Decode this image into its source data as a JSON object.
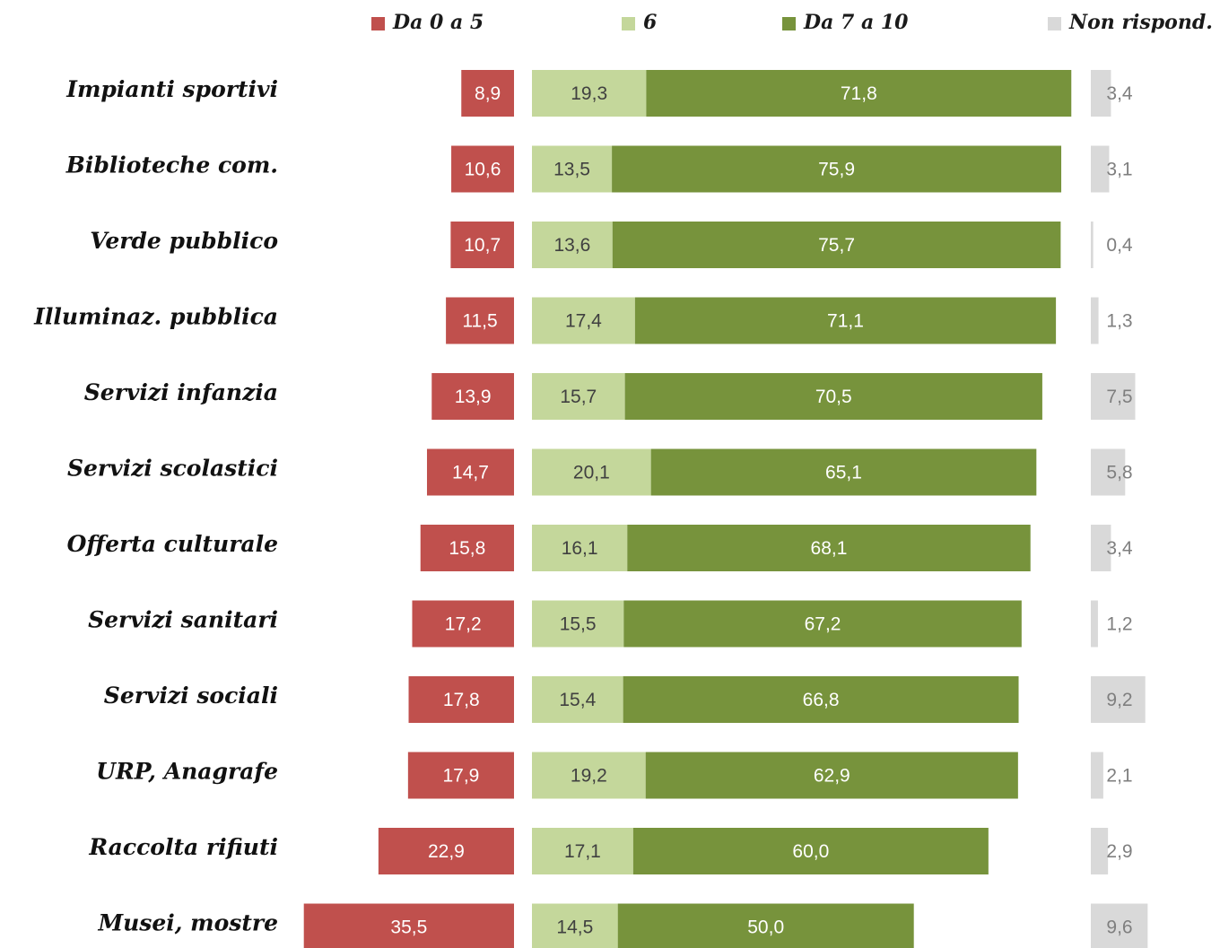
{
  "chart_data": {
    "type": "bar",
    "stacked": true,
    "orientation": "horizontal",
    "legend_position": "top",
    "categories": [
      "Impianti sportivi",
      "Biblioteche com.",
      "Verde pubblico",
      "Illuminaz. pubblica",
      "Servizi infanzia",
      "Servizi scolastici",
      "Offerta culturale",
      "Servizi sanitari",
      "Servizi sociali",
      "URP,  Anagrafe",
      "Raccolta rifiuti",
      "Musei, mostre"
    ],
    "series": [
      {
        "name": "Da 0 a 5",
        "color": "#c0504d",
        "label_color": "#ffffff",
        "values": [
          8.9,
          10.6,
          10.7,
          11.5,
          13.9,
          14.7,
          15.8,
          17.2,
          17.8,
          17.9,
          22.9,
          35.5
        ],
        "labels": [
          "8,9",
          "10,6",
          "10,7",
          "11,5",
          "13,9",
          "14,7",
          "15,8",
          "17,2",
          "17,8",
          "17,9",
          "22,9",
          "35,5"
        ]
      },
      {
        "name": "6",
        "color": "#c4d79b",
        "label_color": "#404040",
        "values": [
          19.3,
          13.5,
          13.6,
          17.4,
          15.7,
          20.1,
          16.1,
          15.5,
          15.4,
          19.2,
          17.1,
          14.5
        ],
        "labels": [
          "19,3",
          "13,5",
          "13,6",
          "17,4",
          "15,7",
          "20,1",
          "16,1",
          "15,5",
          "15,4",
          "19,2",
          "17,1",
          "14,5"
        ]
      },
      {
        "name": "Da 7 a 10",
        "color": "#77933c",
        "label_color": "#ffffff",
        "values": [
          71.8,
          75.9,
          75.7,
          71.1,
          70.5,
          65.1,
          68.1,
          67.2,
          66.8,
          62.9,
          60.0,
          50.0
        ],
        "labels": [
          "71,8",
          "75,9",
          "75,7",
          "71,1",
          "70,5",
          "65,1",
          "68,1",
          "67,2",
          "66,8",
          "62,9",
          "60,0",
          "50,0"
        ]
      },
      {
        "name": "Non rispond.",
        "color": "#d9d9d9",
        "label_color": "#7f7f7f",
        "values": [
          3.4,
          3.1,
          0.4,
          1.3,
          7.5,
          5.8,
          3.4,
          1.2,
          9.2,
          2.1,
          2.9,
          9.6
        ],
        "labels": [
          "3,4",
          "3,1",
          "0,4",
          "1,3",
          "7,5",
          "5,8",
          "3,4",
          "1,2",
          "9,2",
          "2,1",
          "2,9",
          "9,6"
        ]
      }
    ]
  }
}
